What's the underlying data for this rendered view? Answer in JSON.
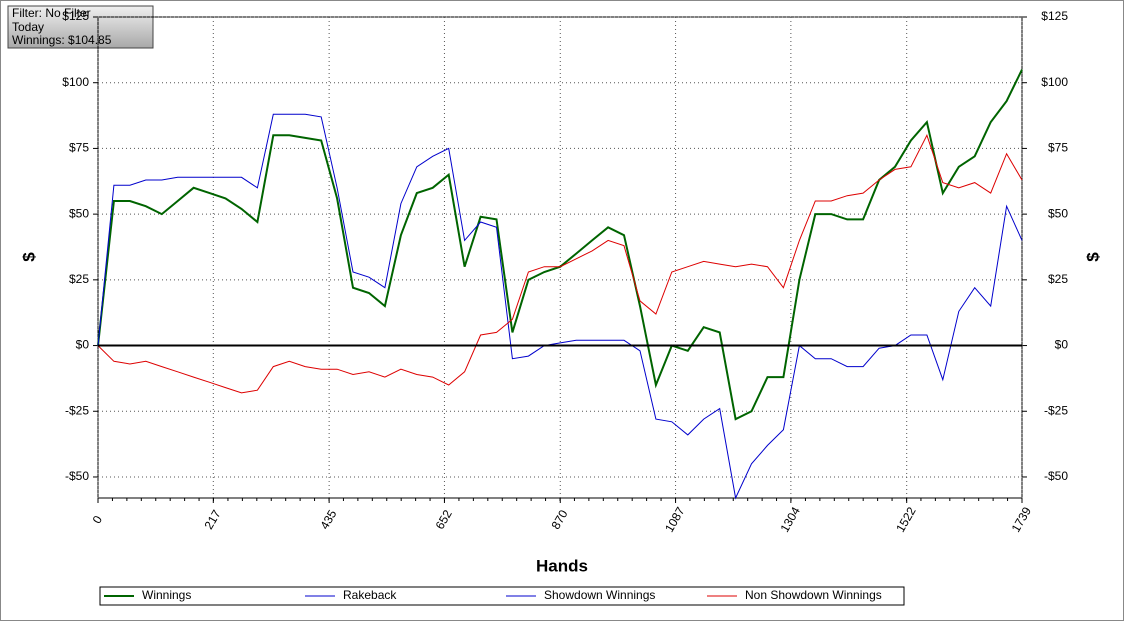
{
  "info_box": [
    "Filter: No Filter",
    "Today",
    "Winnings: $104.85"
  ],
  "chart_data": {
    "type": "line",
    "xlabel": "Hands",
    "ylabel": "$",
    "y2label": "$",
    "x": [
      0,
      30,
      60,
      90,
      120,
      150,
      180,
      210,
      240,
      270,
      300,
      330,
      360,
      390,
      420,
      450,
      480,
      510,
      540,
      570,
      600,
      630,
      660,
      690,
      720,
      750,
      780,
      810,
      840,
      870,
      900,
      930,
      960,
      990,
      1020,
      1050,
      1080,
      1110,
      1140,
      1170,
      1200,
      1230,
      1260,
      1290,
      1320,
      1350,
      1380,
      1410,
      1440,
      1470,
      1500,
      1530,
      1560,
      1590,
      1620,
      1650,
      1680,
      1710,
      1739
    ],
    "series": [
      {
        "name": "Winnings",
        "color": "#006400",
        "width": 2,
        "values": [
          0,
          55,
          55,
          53,
          50,
          55,
          60,
          58,
          56,
          52,
          47,
          80,
          80,
          79,
          78,
          56,
          22,
          20,
          15,
          42,
          58,
          60,
          65,
          30,
          49,
          48,
          5,
          25,
          28,
          30,
          35,
          40,
          45,
          42,
          15,
          -15,
          0,
          -2,
          7,
          5,
          -28,
          -25,
          -12,
          -12,
          25,
          50,
          50,
          48,
          48,
          63,
          68,
          78,
          85,
          58,
          68,
          72,
          85,
          93,
          105
        ]
      },
      {
        "name": "Rakeback",
        "color": "#0000cc",
        "width": 1,
        "values": [
          null,
          null,
          null,
          null,
          null,
          null,
          null,
          null,
          null,
          null,
          null,
          null,
          null,
          null,
          null,
          null,
          null,
          null,
          null,
          null,
          null,
          null,
          null,
          null,
          null,
          null,
          null,
          null,
          null,
          null,
          null,
          null,
          null,
          null,
          null,
          null,
          null,
          null,
          null,
          null,
          null,
          null,
          null,
          null,
          null,
          null,
          null,
          null,
          null,
          null,
          null,
          null,
          null,
          null,
          null,
          null,
          null,
          null,
          null
        ]
      },
      {
        "name": "Showdown Winnings",
        "color": "#0000cc",
        "width": 1,
        "values": [
          0,
          61,
          61,
          63,
          63,
          64,
          64,
          64,
          64,
          64,
          60,
          88,
          88,
          88,
          87,
          60,
          28,
          26,
          22,
          54,
          68,
          72,
          75,
          40,
          47,
          45,
          -5,
          -4,
          0,
          1,
          2,
          2,
          2,
          2,
          -2,
          -28,
          -29,
          -34,
          -28,
          -24,
          -58,
          -45,
          -38,
          -32,
          0,
          -5,
          -5,
          -8,
          -8,
          -1,
          0,
          4,
          4,
          -13,
          13,
          22,
          15,
          53,
          40
        ]
      },
      {
        "name": "Non Showdown Winnings",
        "color": "#dd0000",
        "width": 1,
        "values": [
          0,
          -6,
          -7,
          -6,
          -8,
          -10,
          -12,
          -14,
          -16,
          -18,
          -17,
          -8,
          -6,
          -8,
          -9,
          -9,
          -11,
          -10,
          -12,
          -9,
          -11,
          -12,
          -15,
          -10,
          4,
          5,
          10,
          28,
          30,
          30,
          33,
          36,
          40,
          38,
          17,
          12,
          28,
          30,
          32,
          31,
          30,
          31,
          30,
          22,
          40,
          55,
          55,
          57,
          58,
          63,
          67,
          68,
          80,
          62,
          60,
          62,
          58,
          73,
          63
        ]
      }
    ],
    "xlim": [
      0,
      1739
    ],
    "xticks": [
      0,
      217,
      435,
      652,
      870,
      1087,
      1304,
      1522,
      1739
    ],
    "ylim": [
      -58,
      125
    ],
    "yticks": [
      {
        "value": -50,
        "label": "-$50"
      },
      {
        "value": -25,
        "label": "-$25"
      },
      {
        "value": 0,
        "label": "$0"
      },
      {
        "value": 25,
        "label": "$25"
      },
      {
        "value": 50,
        "label": "$50"
      },
      {
        "value": 75,
        "label": "$75"
      },
      {
        "value": 100,
        "label": "$100"
      },
      {
        "value": 125,
        "label": "$125"
      }
    ],
    "y2lim": [
      -58,
      125
    ],
    "y2ticks": [
      {
        "value": -50,
        "label": "-$50"
      },
      {
        "value": -25,
        "label": "-$25"
      },
      {
        "value": 0,
        "label": "$0"
      },
      {
        "value": 25,
        "label": "$25"
      },
      {
        "value": 50,
        "label": "$50"
      },
      {
        "value": 75,
        "label": "$75"
      },
      {
        "value": 100,
        "label": "$100"
      },
      {
        "value": 125,
        "label": "$125"
      }
    ],
    "grid": true,
    "legend": "bottom"
  }
}
